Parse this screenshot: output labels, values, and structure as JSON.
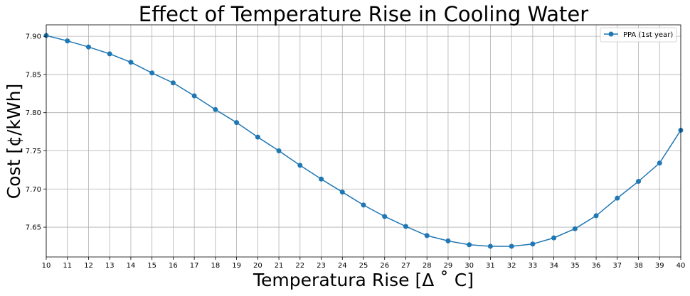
{
  "chart_data": {
    "type": "line",
    "title": "Effect of Temperature Rise in Cooling Water",
    "xlabel": "Temperatura Rise [Δ$^\\circ$C]",
    "xlabel_display": "Temperatura Rise [Δ ˚ C]",
    "ylabel": "Cost [¢/kWh]",
    "xlim": [
      10,
      40
    ],
    "ylim": [
      7.611,
      7.915
    ],
    "x_ticks": [
      10,
      11,
      12,
      13,
      14,
      15,
      16,
      17,
      18,
      19,
      20,
      21,
      22,
      23,
      24,
      25,
      26,
      27,
      28,
      29,
      30,
      31,
      32,
      33,
      34,
      35,
      36,
      37,
      38,
      39,
      40
    ],
    "y_ticks": [
      7.65,
      7.7,
      7.75,
      7.8,
      7.85,
      7.9
    ],
    "y_tick_labels": [
      "7.65",
      "7.70",
      "7.75",
      "7.80",
      "7.85",
      "7.90"
    ],
    "grid": true,
    "legend_position": "top-right",
    "series": [
      {
        "name": "PPA (1st year)",
        "color": "#1f77b4",
        "marker": "circle",
        "x": [
          10,
          11,
          12,
          13,
          14,
          15,
          16,
          17,
          18,
          19,
          20,
          21,
          22,
          23,
          24,
          25,
          26,
          27,
          28,
          29,
          30,
          31,
          32,
          33,
          34,
          35,
          36,
          37,
          38,
          39,
          40
        ],
        "y": [
          7.901,
          7.894,
          7.886,
          7.877,
          7.866,
          7.852,
          7.839,
          7.822,
          7.804,
          7.787,
          7.768,
          7.75,
          7.731,
          7.713,
          7.696,
          7.679,
          7.664,
          7.651,
          7.639,
          7.632,
          7.627,
          7.625,
          7.625,
          7.628,
          7.636,
          7.648,
          7.665,
          7.688,
          7.71,
          7.734,
          7.777
        ]
      }
    ]
  }
}
